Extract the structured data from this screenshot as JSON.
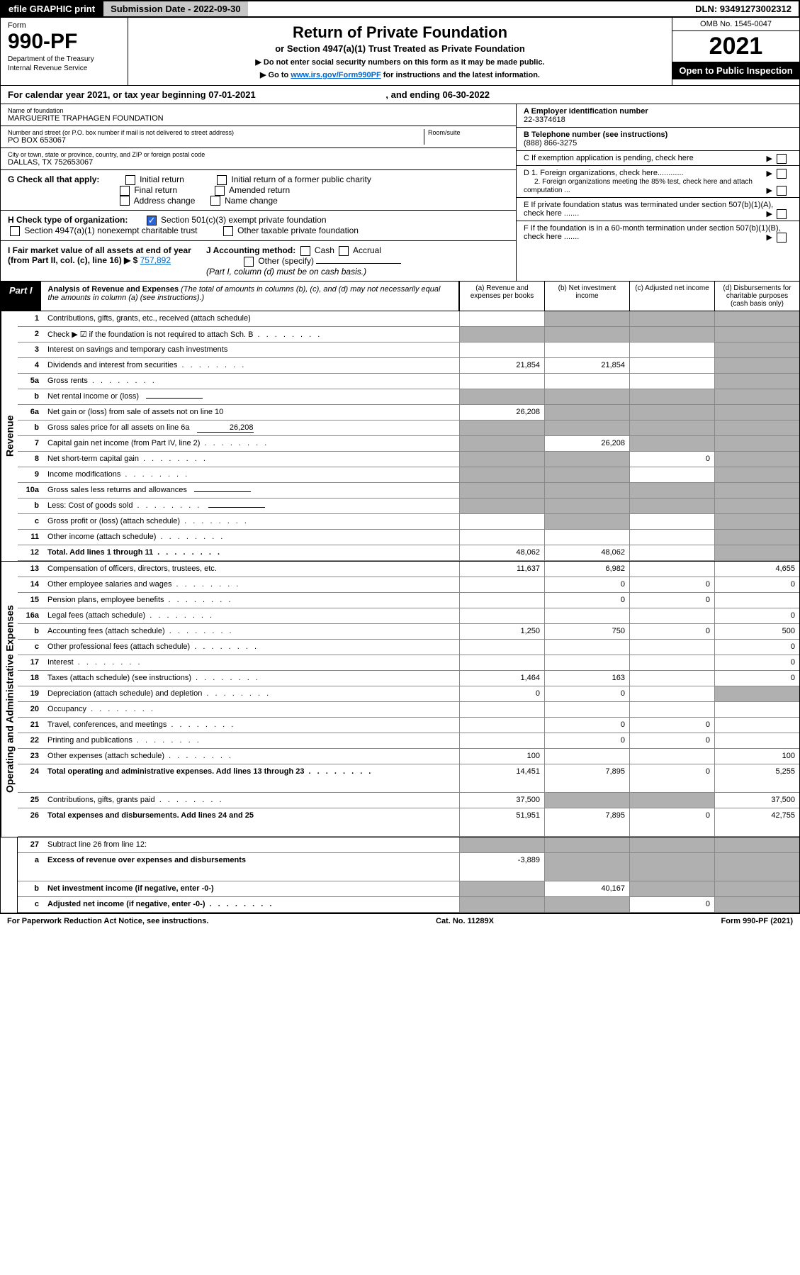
{
  "topbar": {
    "left": "efile GRAPHIC print",
    "mid": "Submission Date - 2022-09-30",
    "right": "DLN: 93491273002312"
  },
  "header": {
    "form_label": "Form",
    "form_num": "990-PF",
    "dept1": "Department of the Treasury",
    "dept2": "Internal Revenue Service",
    "title": "Return of Private Foundation",
    "subtitle": "or Section 4947(a)(1) Trust Treated as Private Foundation",
    "instr1": "▶ Do not enter social security numbers on this form as it may be made public.",
    "instr2_pre": "▶ Go to ",
    "instr2_link": "www.irs.gov/Form990PF",
    "instr2_post": " for instructions and the latest information.",
    "omb": "OMB No. 1545-0047",
    "year": "2021",
    "open_pub": "Open to Public Inspection"
  },
  "cal_year": {
    "pre": "For calendar year 2021, or tax year beginning ",
    "begin": "07-01-2021",
    "mid": " , and ending ",
    "end": "06-30-2022"
  },
  "info": {
    "name_label": "Name of foundation",
    "name": "MARGUERITE TRAPHAGEN FOUNDATION",
    "addr_label": "Number and street (or P.O. box number if mail is not delivered to street address)",
    "addr": "PO BOX 653067",
    "room_label": "Room/suite",
    "city_label": "City or town, state or province, country, and ZIP or foreign postal code",
    "city": "DALLAS, TX  752653067",
    "a_label": "A Employer identification number",
    "a_val": "22-3374618",
    "b_label": "B Telephone number (see instructions)",
    "b_val": "(888) 866-3275",
    "c_label": "C If exemption application is pending, check here",
    "d1": "D 1. Foreign organizations, check here............",
    "d2": "2. Foreign organizations meeting the 85% test, check here and attach computation ...",
    "e": "E  If private foundation status was terminated under section 507(b)(1)(A), check here .......",
    "f": "F  If the foundation is in a 60-month termination under section 507(b)(1)(B), check here .......",
    "g_label": "G Check all that apply:",
    "g_opts": [
      "Initial return",
      "Final return",
      "Address change",
      "Initial return of a former public charity",
      "Amended return",
      "Name change"
    ],
    "h_label": "H Check type of organization:",
    "h_opt1": "Section 501(c)(3) exempt private foundation",
    "h_opt2": "Section 4947(a)(1) nonexempt charitable trust",
    "h_opt3": "Other taxable private foundation",
    "i_label": "I Fair market value of all assets at end of year (from Part II, col. (c), line 16) ▶ $",
    "i_val": "757,892",
    "j_label": "J Accounting method:",
    "j_cash": "Cash",
    "j_accrual": "Accrual",
    "j_other": "Other (specify)",
    "j_note": "(Part I, column (d) must be on cash basis.)"
  },
  "part1": {
    "tag": "Part I",
    "title": "Analysis of Revenue and Expenses",
    "paren": "(The total of amounts in columns (b), (c), and (d) may not necessarily equal the amounts in column (a) (see instructions).)",
    "col_a": "(a) Revenue and expenses per books",
    "col_b": "(b) Net investment income",
    "col_c": "(c) Adjusted net income",
    "col_d": "(d) Disbursements for charitable purposes (cash basis only)",
    "side_rev": "Revenue",
    "side_exp": "Operating and Administrative Expenses"
  },
  "rows_rev": [
    {
      "n": "1",
      "d": "Contributions, gifts, grants, etc., received (attach schedule)",
      "a": "",
      "b": "shaded",
      "c": "shaded",
      "dd": "shaded"
    },
    {
      "n": "2",
      "d": "Check ▶ ☑ if the foundation is not required to attach Sch. B",
      "dots": true,
      "a": "shaded",
      "b": "shaded",
      "c": "shaded",
      "dd": "shaded",
      "bold_not": true
    },
    {
      "n": "3",
      "d": "Interest on savings and temporary cash investments",
      "a": "",
      "b": "",
      "c": "",
      "dd": "shaded"
    },
    {
      "n": "4",
      "d": "Dividends and interest from securities",
      "dots": true,
      "a": "21,854",
      "b": "21,854",
      "c": "",
      "dd": "shaded"
    },
    {
      "n": "5a",
      "d": "Gross rents",
      "dots": true,
      "a": "",
      "b": "",
      "c": "",
      "dd": "shaded"
    },
    {
      "n": "b",
      "d": "Net rental income or (loss)",
      "inline": "",
      "a": "shaded",
      "b": "shaded",
      "c": "shaded",
      "dd": "shaded"
    },
    {
      "n": "6a",
      "d": "Net gain or (loss) from sale of assets not on line 10",
      "a": "26,208",
      "b": "shaded",
      "c": "shaded",
      "dd": "shaded"
    },
    {
      "n": "b",
      "d": "Gross sales price for all assets on line 6a",
      "inline": "26,208",
      "a": "shaded",
      "b": "shaded",
      "c": "shaded",
      "dd": "shaded"
    },
    {
      "n": "7",
      "d": "Capital gain net income (from Part IV, line 2)",
      "dots": true,
      "a": "shaded",
      "b": "26,208",
      "c": "shaded",
      "dd": "shaded"
    },
    {
      "n": "8",
      "d": "Net short-term capital gain",
      "dots": true,
      "a": "shaded",
      "b": "shaded",
      "c": "0",
      "dd": "shaded"
    },
    {
      "n": "9",
      "d": "Income modifications",
      "dots": true,
      "a": "shaded",
      "b": "shaded",
      "c": "",
      "dd": "shaded"
    },
    {
      "n": "10a",
      "d": "Gross sales less returns and allowances",
      "inline": "",
      "a": "shaded",
      "b": "shaded",
      "c": "shaded",
      "dd": "shaded"
    },
    {
      "n": "b",
      "d": "Less: Cost of goods sold",
      "dots": true,
      "inline": "",
      "a": "shaded",
      "b": "shaded",
      "c": "shaded",
      "dd": "shaded"
    },
    {
      "n": "c",
      "d": "Gross profit or (loss) (attach schedule)",
      "dots": true,
      "a": "",
      "b": "shaded",
      "c": "",
      "dd": "shaded"
    },
    {
      "n": "11",
      "d": "Other income (attach schedule)",
      "dots": true,
      "a": "",
      "b": "",
      "c": "",
      "dd": "shaded"
    },
    {
      "n": "12",
      "d": "Total. Add lines 1 through 11",
      "dots": true,
      "bold": true,
      "a": "48,062",
      "b": "48,062",
      "c": "",
      "dd": "shaded"
    }
  ],
  "rows_exp": [
    {
      "n": "13",
      "d": "Compensation of officers, directors, trustees, etc.",
      "a": "11,637",
      "b": "6,982",
      "c": "",
      "dd": "4,655"
    },
    {
      "n": "14",
      "d": "Other employee salaries and wages",
      "dots": true,
      "a": "",
      "b": "0",
      "c": "0",
      "dd": "0"
    },
    {
      "n": "15",
      "d": "Pension plans, employee benefits",
      "dots": true,
      "a": "",
      "b": "0",
      "c": "0",
      "dd": ""
    },
    {
      "n": "16a",
      "d": "Legal fees (attach schedule)",
      "dots": true,
      "a": "",
      "b": "",
      "c": "",
      "dd": "0"
    },
    {
      "n": "b",
      "d": "Accounting fees (attach schedule)",
      "dots": true,
      "a": "1,250",
      "b": "750",
      "c": "0",
      "dd": "500"
    },
    {
      "n": "c",
      "d": "Other professional fees (attach schedule)",
      "dots": true,
      "a": "",
      "b": "",
      "c": "",
      "dd": "0"
    },
    {
      "n": "17",
      "d": "Interest",
      "dots": true,
      "a": "",
      "b": "",
      "c": "",
      "dd": "0"
    },
    {
      "n": "18",
      "d": "Taxes (attach schedule) (see instructions)",
      "dots": true,
      "a": "1,464",
      "b": "163",
      "c": "",
      "dd": "0"
    },
    {
      "n": "19",
      "d": "Depreciation (attach schedule) and depletion",
      "dots": true,
      "a": "0",
      "b": "0",
      "c": "",
      "dd": "shaded"
    },
    {
      "n": "20",
      "d": "Occupancy",
      "dots": true,
      "a": "",
      "b": "",
      "c": "",
      "dd": ""
    },
    {
      "n": "21",
      "d": "Travel, conferences, and meetings",
      "dots": true,
      "a": "",
      "b": "0",
      "c": "0",
      "dd": ""
    },
    {
      "n": "22",
      "d": "Printing and publications",
      "dots": true,
      "a": "",
      "b": "0",
      "c": "0",
      "dd": ""
    },
    {
      "n": "23",
      "d": "Other expenses (attach schedule)",
      "dots": true,
      "a": "100",
      "b": "",
      "c": "",
      "dd": "100"
    },
    {
      "n": "24",
      "d": "Total operating and administrative expenses. Add lines 13 through 23",
      "dots": true,
      "bold": true,
      "a": "14,451",
      "b": "7,895",
      "c": "0",
      "dd": "5,255",
      "tall": true
    },
    {
      "n": "25",
      "d": "Contributions, gifts, grants paid",
      "dots": true,
      "a": "37,500",
      "b": "shaded",
      "c": "shaded",
      "dd": "37,500"
    },
    {
      "n": "26",
      "d": "Total expenses and disbursements. Add lines 24 and 25",
      "bold": true,
      "a": "51,951",
      "b": "7,895",
      "c": "0",
      "dd": "42,755",
      "tall": true
    }
  ],
  "rows_bot": [
    {
      "n": "27",
      "d": "Subtract line 26 from line 12:",
      "a": "shaded",
      "b": "shaded",
      "c": "shaded",
      "dd": "shaded"
    },
    {
      "n": "a",
      "d": "Excess of revenue over expenses and disbursements",
      "bold": true,
      "a": "-3,889",
      "b": "shaded",
      "c": "shaded",
      "dd": "shaded",
      "tall": true
    },
    {
      "n": "b",
      "d": "Net investment income (if negative, enter -0-)",
      "bold": true,
      "a": "shaded",
      "b": "40,167",
      "c": "shaded",
      "dd": "shaded"
    },
    {
      "n": "c",
      "d": "Adjusted net income (if negative, enter -0-)",
      "dots": true,
      "bold": true,
      "a": "shaded",
      "b": "shaded",
      "c": "0",
      "dd": "shaded"
    }
  ],
  "footer": {
    "left": "For Paperwork Reduction Act Notice, see instructions.",
    "center": "Cat. No. 11289X",
    "right": "Form 990-PF (2021)"
  }
}
